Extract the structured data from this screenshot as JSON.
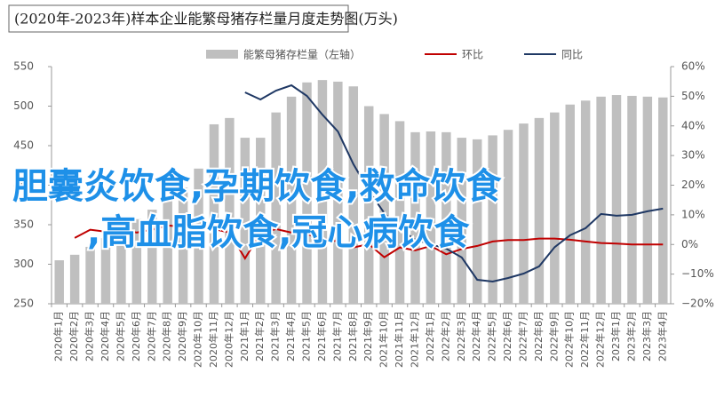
{
  "chart_data": {
    "type": "bar_line",
    "title": "(2020年-2023年)样本企业能繁母猪存栏量月度走势图(万头)",
    "categories": [
      "2020年1月",
      "2020年2月",
      "2020年3月",
      "2020年4月",
      "2020年5月",
      "2020年6月",
      "2020年7月",
      "2020年8月",
      "2020年9月",
      "2020年10月",
      "2020年11月",
      "2020年12月",
      "2021年1月",
      "2021年2月",
      "2021年3月",
      "2021年4月",
      "2021年5月",
      "2021年6月",
      "2021年7月",
      "2021年8月",
      "2021年9月",
      "2021年10月",
      "2021年11月",
      "2021年12月",
      "2022年1月",
      "2022年2月",
      "2022年3月",
      "2022年4月",
      "2022年5月",
      "2022年6月",
      "2022年7月",
      "2022年8月",
      "2022年9月",
      "2022年10月",
      "2022年11月",
      "2022年12月",
      "2023年1月",
      "2023年2月",
      "2023年3月",
      "2023年4月"
    ],
    "series": [
      {
        "name": "能繁母猪存栏量（左轴）",
        "color": "#bfbfbf",
        "kind": "bar",
        "axis": "y",
        "values": [
          305,
          312,
          322,
          333,
          344,
          357,
          369,
          386,
          397,
          421,
          477,
          485,
          460,
          460,
          492,
          512,
          530,
          533,
          531,
          525,
          500,
          490,
          481,
          467,
          468,
          467,
          460,
          458,
          463,
          470,
          478,
          485,
          492,
          502,
          507,
          512,
          514,
          513,
          512,
          511
        ]
      },
      {
        "name": "环比",
        "color": "#c00000",
        "kind": "line",
        "axis": "y2",
        "values": [
          null,
          2.2,
          5,
          4.3,
          5.2,
          4,
          5,
          6.4,
          6,
          5.8,
          5.2,
          4,
          -4.7,
          3.7,
          5.2,
          4,
          3.5,
          2,
          1,
          -1,
          0.1,
          -4.3,
          -1,
          -2,
          -0.5,
          -3.3,
          -1.5,
          -0.5,
          1,
          1.5,
          1.5,
          2,
          2,
          1.6,
          1,
          0.5,
          0.3,
          0,
          0,
          0
        ]
      },
      {
        "name": "同比",
        "color": "#1f3864",
        "kind": "line",
        "axis": "y2",
        "values": [
          null,
          null,
          null,
          null,
          null,
          null,
          null,
          null,
          null,
          null,
          null,
          null,
          51.3,
          48.9,
          51.9,
          53.7,
          50.1,
          43.8,
          38.1,
          27.1,
          18.1,
          10.6,
          5.2,
          1.6,
          0.1,
          -1.4,
          -4.4,
          -11.9,
          -12.5,
          -11.3,
          -9.8,
          -7.4,
          -0.9,
          3.1,
          5.5,
          10.3,
          9.7,
          10.0,
          11.2,
          12.1
        ]
      }
    ],
    "ylim": [
      250,
      550
    ],
    "yticks": [
      250,
      300,
      350,
      400,
      450,
      500,
      550
    ],
    "y2lim": [
      -20,
      60
    ],
    "y2ticks": [
      {
        "value": -20,
        "label": "−20%"
      },
      {
        "value": -10,
        "label": "−10%"
      },
      {
        "value": 0,
        "label": "0%"
      },
      {
        "value": 10,
        "label": "10%"
      },
      {
        "value": 20,
        "label": "20%"
      },
      {
        "value": 30,
        "label": "30%"
      },
      {
        "value": 40,
        "label": "40%"
      },
      {
        "value": 50,
        "label": "50%"
      },
      {
        "value": 60,
        "label": "60%"
      }
    ],
    "annotations": [
      "胆囊炎饮食,孕期饮食,救命饮食",
      ",高血脂饮食,冠心病饮食"
    ]
  }
}
